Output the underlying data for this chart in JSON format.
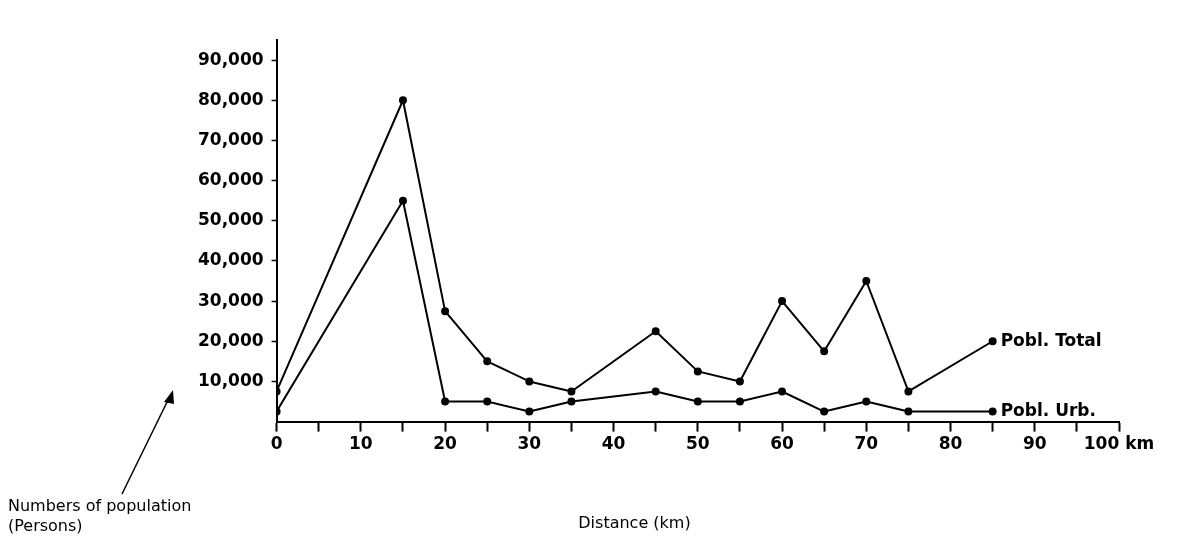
{
  "chart_data": {
    "type": "line",
    "xlabel": "Distance (km)",
    "ylabel": "Numbers of population (Persons)",
    "x": [
      0,
      15,
      20,
      25,
      30,
      35,
      45,
      50,
      55,
      60,
      65,
      70,
      75,
      85
    ],
    "series": [
      {
        "name": "Pobl. Total",
        "color": "#000000",
        "values": [
          7500,
          80000,
          27500,
          15000,
          10000,
          7500,
          22500,
          12500,
          10000,
          30000,
          17500,
          35000,
          7500,
          20000
        ]
      },
      {
        "name": "Pobl. Urb.",
        "color": "#000000",
        "values": [
          2500,
          55000,
          5000,
          5000,
          2500,
          5000,
          7500,
          5000,
          5000,
          7500,
          2500,
          5000,
          2500,
          2500
        ]
      }
    ],
    "xlim": [
      0,
      100
    ],
    "xticks": [
      0,
      {
        "value": 5,
        "label": null
      },
      10,
      {
        "value": 15,
        "label": null
      },
      20,
      {
        "value": 25,
        "label": null
      },
      30,
      {
        "value": 35,
        "label": null
      },
      40,
      {
        "value": 45,
        "label": null
      },
      50,
      {
        "value": 55,
        "label": null
      },
      60,
      {
        "value": 65,
        "label": null
      },
      70,
      {
        "value": 75,
        "label": null
      },
      80,
      {
        "value": 85,
        "label": null
      },
      90,
      {
        "value": 95,
        "label": null
      },
      {
        "value": 100,
        "label": "100 km"
      }
    ],
    "ylim": [
      0,
      95000
    ],
    "yticks": [
      {
        "value": 10000,
        "label": "10,000"
      },
      {
        "value": 20000,
        "label": "20,000"
      },
      {
        "value": 30000,
        "label": "30,000"
      },
      {
        "value": 40000,
        "label": "40,000"
      },
      {
        "value": 50000,
        "label": "50,000"
      },
      {
        "value": 60000,
        "label": "60,000"
      },
      {
        "value": 70000,
        "label": "70,000"
      },
      {
        "value": 80000,
        "label": "80,000"
      },
      {
        "value": 90000,
        "label": "90,000"
      }
    ],
    "grid": false,
    "legend": false,
    "marker": "circle",
    "line_style": "solid"
  }
}
